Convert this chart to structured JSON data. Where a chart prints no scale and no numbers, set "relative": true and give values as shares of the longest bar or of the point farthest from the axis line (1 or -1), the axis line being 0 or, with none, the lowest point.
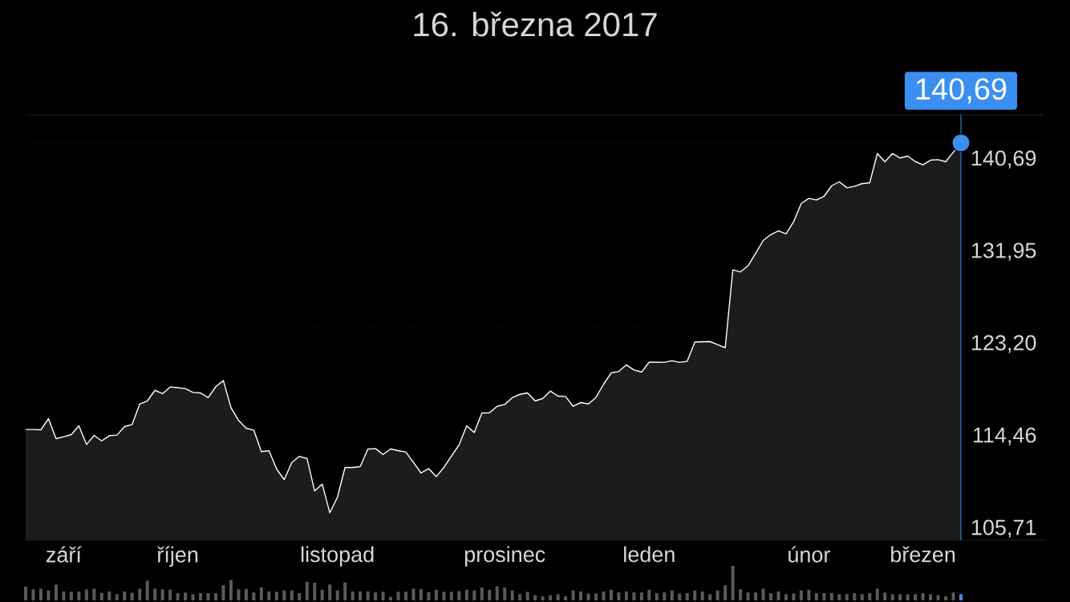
{
  "chart_data": [
    {
      "type": "area",
      "title": "16. března 2017",
      "categories": [
        null,
        null,
        null,
        null,
        null,
        "září",
        null,
        null,
        null,
        null,
        null,
        null,
        null,
        null,
        null,
        null,
        null,
        null,
        null,
        null,
        "říjen",
        null,
        null,
        null,
        null,
        null,
        null,
        null,
        null,
        null,
        null,
        null,
        null,
        null,
        null,
        null,
        null,
        null,
        null,
        null,
        null,
        "listopad",
        null,
        null,
        null,
        null,
        null,
        null,
        null,
        null,
        null,
        null,
        null,
        null,
        null,
        null,
        null,
        null,
        null,
        null,
        null,
        null,
        null,
        "prosinec",
        null,
        null,
        null,
        null,
        null,
        null,
        null,
        null,
        null,
        null,
        null,
        null,
        null,
        null,
        null,
        null,
        null,
        null,
        "leden",
        null,
        null,
        null,
        null,
        null,
        null,
        null,
        null,
        null,
        null,
        null,
        null,
        null,
        null,
        null,
        null,
        null,
        null,
        null,
        null,
        "únor",
        null,
        null,
        null,
        null,
        null,
        null,
        null,
        null,
        null,
        null,
        null,
        null,
        null,
        null,
        "březen",
        null,
        null,
        null,
        null,
        null
      ],
      "series": [
        {
          "color": "#ffffff",
          "values": [
            113.53,
            113.53,
            113.5,
            114.57,
            112.67,
            112.85,
            113.05,
            113.88,
            112.11,
            112.97,
            112.46,
            112.95,
            113.0,
            113.81,
            114.01,
            115.94,
            116.24,
            117.25,
            116.93,
            117.56,
            117.5,
            117.41,
            117.05,
            117.0,
            116.55,
            117.59,
            118.17,
            115.61,
            114.39,
            113.66,
            113.48,
            111.43,
            111.53,
            109.8,
            108.79,
            110.41,
            110.99,
            110.79,
            107.72,
            108.36,
            105.65,
            107.12,
            109.93,
            109.93,
            110.03,
            111.68,
            111.73,
            111.17,
            111.7,
            111.53,
            111.4,
            110.41,
            109.42,
            109.83,
            109.07,
            109.95,
            111.02,
            112.08,
            113.88,
            113.25,
            115.1,
            115.12,
            115.73,
            115.91,
            116.55,
            116.87,
            117.0,
            116.24,
            116.47,
            117.18,
            116.7,
            116.67,
            115.73,
            116.09,
            115.96,
            116.57,
            117.82,
            118.9,
            119.03,
            119.66,
            119.18,
            118.98,
            119.91,
            119.91,
            119.9,
            120.05,
            119.9,
            120.0,
            121.81,
            121.85,
            121.87,
            121.58,
            121.28,
            128.66,
            128.46,
            129.04,
            130.23,
            131.45,
            132.0,
            132.36,
            132.06,
            133.22,
            134.95,
            135.43,
            135.28,
            135.63,
            136.62,
            137.0,
            136.44,
            136.57,
            136.83,
            136.9,
            139.68,
            138.9,
            139.68,
            139.26,
            139.43,
            138.92,
            138.6,
            139.05,
            139.1,
            138.9,
            139.8,
            140.69
          ]
        }
      ],
      "ylim": [
        103.05,
        143.35
      ],
      "yticks": [
        {
          "value": 105.71,
          "label": "105,71"
        },
        {
          "value": 114.46,
          "label": "114,46"
        },
        {
          "value": 123.2,
          "label": "123,20"
        },
        {
          "value": 131.95,
          "label": "131,95"
        },
        {
          "value": 140.69,
          "label": "140,69"
        }
      ],
      "grid": "y",
      "annotations": [
        {
          "text": "140,69",
          "y": 140.69
        }
      ]
    },
    {
      "type": "bar",
      "relative": true,
      "categories": [
        null,
        null,
        null,
        null,
        null,
        null,
        null,
        null,
        null,
        null,
        null,
        null,
        null,
        null,
        null,
        null,
        null,
        null,
        null,
        null,
        null,
        null,
        null,
        null,
        null,
        null,
        null,
        null,
        null,
        null,
        null,
        null,
        null,
        null,
        null,
        null,
        null,
        null,
        null,
        null,
        null,
        null,
        null,
        null,
        null,
        null,
        null,
        null,
        null,
        null,
        null,
        null,
        null,
        null,
        null,
        null,
        null,
        null,
        null,
        null,
        null,
        null,
        null,
        null,
        null,
        null,
        null,
        null,
        null,
        null,
        null,
        null,
        null,
        null,
        null,
        null,
        null,
        null,
        null,
        null,
        null,
        null,
        null,
        null,
        null,
        null,
        null,
        null,
        null,
        null,
        null,
        null,
        null,
        null,
        null,
        null,
        null,
        null,
        null,
        null,
        null,
        null,
        null,
        null,
        null,
        null,
        null,
        null,
        null,
        null,
        null,
        null,
        null,
        null,
        null,
        null,
        null,
        null,
        null,
        null,
        null,
        null,
        null,
        null
      ],
      "values": [
        0.4,
        0.32,
        0.34,
        0.29,
        0.46,
        0.26,
        0.25,
        0.26,
        0.32,
        0.34,
        0.22,
        0.26,
        0.18,
        0.26,
        0.22,
        0.34,
        0.57,
        0.34,
        0.32,
        0.31,
        0.21,
        0.23,
        0.18,
        0.21,
        0.21,
        0.21,
        0.44,
        0.59,
        0.32,
        0.33,
        0.23,
        0.38,
        0.26,
        0.25,
        0.29,
        0.29,
        0.21,
        0.54,
        0.51,
        0.31,
        0.46,
        0.29,
        0.52,
        0.26,
        0.26,
        0.26,
        0.23,
        0.25,
        0.1,
        0.25,
        0.25,
        0.34,
        0.33,
        0.24,
        0.31,
        0.25,
        0.25,
        0.27,
        0.31,
        0.29,
        0.37,
        0.31,
        0.41,
        0.37,
        0.29,
        0.18,
        0.25,
        0.15,
        0.12,
        0.15,
        0.18,
        0.12,
        0.29,
        0.26,
        0.2,
        0.2,
        0.26,
        0.31,
        0.23,
        0.26,
        0.23,
        0.23,
        0.31,
        0.21,
        0.23,
        0.29,
        0.2,
        0.21,
        0.29,
        0.26,
        0.18,
        0.29,
        0.44,
        1,
        0.32,
        0.23,
        0.23,
        0.34,
        0.21,
        0.26,
        0.18,
        0.2,
        0.29,
        0.31,
        0.21,
        0.21,
        0.21,
        0.18,
        0.18,
        0.21,
        0.18,
        0.21,
        0.34,
        0.23,
        0.18,
        0.18,
        0.18,
        0.18,
        0.21,
        0.18,
        0.15,
        0.12,
        0.23,
        0.18
      ],
      "colors": [
        "#5a5a5a",
        "#5a5a5a",
        "#5a5a5a",
        "#5a5a5a",
        "#5a5a5a",
        "#5a5a5a",
        "#5a5a5a",
        "#5a5a5a",
        "#5a5a5a",
        "#5a5a5a",
        "#5a5a5a",
        "#5a5a5a",
        "#5a5a5a",
        "#5a5a5a",
        "#5a5a5a",
        "#5a5a5a",
        "#5a5a5a",
        "#5a5a5a",
        "#5a5a5a",
        "#5a5a5a",
        "#5a5a5a",
        "#5a5a5a",
        "#5a5a5a",
        "#5a5a5a",
        "#5a5a5a",
        "#5a5a5a",
        "#5a5a5a",
        "#5a5a5a",
        "#5a5a5a",
        "#5a5a5a",
        "#5a5a5a",
        "#5a5a5a",
        "#5a5a5a",
        "#5a5a5a",
        "#5a5a5a",
        "#5a5a5a",
        "#5a5a5a",
        "#5a5a5a",
        "#5a5a5a",
        "#5a5a5a",
        "#5a5a5a",
        "#5a5a5a",
        "#5a5a5a",
        "#5a5a5a",
        "#5a5a5a",
        "#5a5a5a",
        "#5a5a5a",
        "#5a5a5a",
        "#5a5a5a",
        "#5a5a5a",
        "#5a5a5a",
        "#5a5a5a",
        "#5a5a5a",
        "#5a5a5a",
        "#5a5a5a",
        "#5a5a5a",
        "#5a5a5a",
        "#5a5a5a",
        "#5a5a5a",
        "#5a5a5a",
        "#5a5a5a",
        "#5a5a5a",
        "#5a5a5a",
        "#5a5a5a",
        "#5a5a5a",
        "#5a5a5a",
        "#5a5a5a",
        "#5a5a5a",
        "#5a5a5a",
        "#5a5a5a",
        "#5a5a5a",
        "#5a5a5a",
        "#5a5a5a",
        "#5a5a5a",
        "#5a5a5a",
        "#5a5a5a",
        "#5a5a5a",
        "#5a5a5a",
        "#5a5a5a",
        "#5a5a5a",
        "#5a5a5a",
        "#5a5a5a",
        "#5a5a5a",
        "#5a5a5a",
        "#5a5a5a",
        "#5a5a5a",
        "#5a5a5a",
        "#5a5a5a",
        "#5a5a5a",
        "#5a5a5a",
        "#5a5a5a",
        "#5a5a5a",
        "#5a5a5a",
        "#5a5a5a",
        "#5a5a5a",
        "#5a5a5a",
        "#5a5a5a",
        "#5a5a5a",
        "#5a5a5a",
        "#5a5a5a",
        "#5a5a5a",
        "#5a5a5a",
        "#5a5a5a",
        "#5a5a5a",
        "#5a5a5a",
        "#5a5a5a",
        "#5a5a5a",
        "#5a5a5a",
        "#5a5a5a",
        "#5a5a5a",
        "#5a5a5a",
        "#5a5a5a",
        "#5a5a5a",
        "#5a5a5a",
        "#5a5a5a",
        "#5a5a5a",
        "#5a5a5a",
        "#5a5a5a",
        "#5a5a5a",
        "#5a5a5a",
        "#5a5a5a",
        "#5a5a5a",
        "#5a5a5a",
        "#3b8ff0"
      ]
    }
  ]
}
